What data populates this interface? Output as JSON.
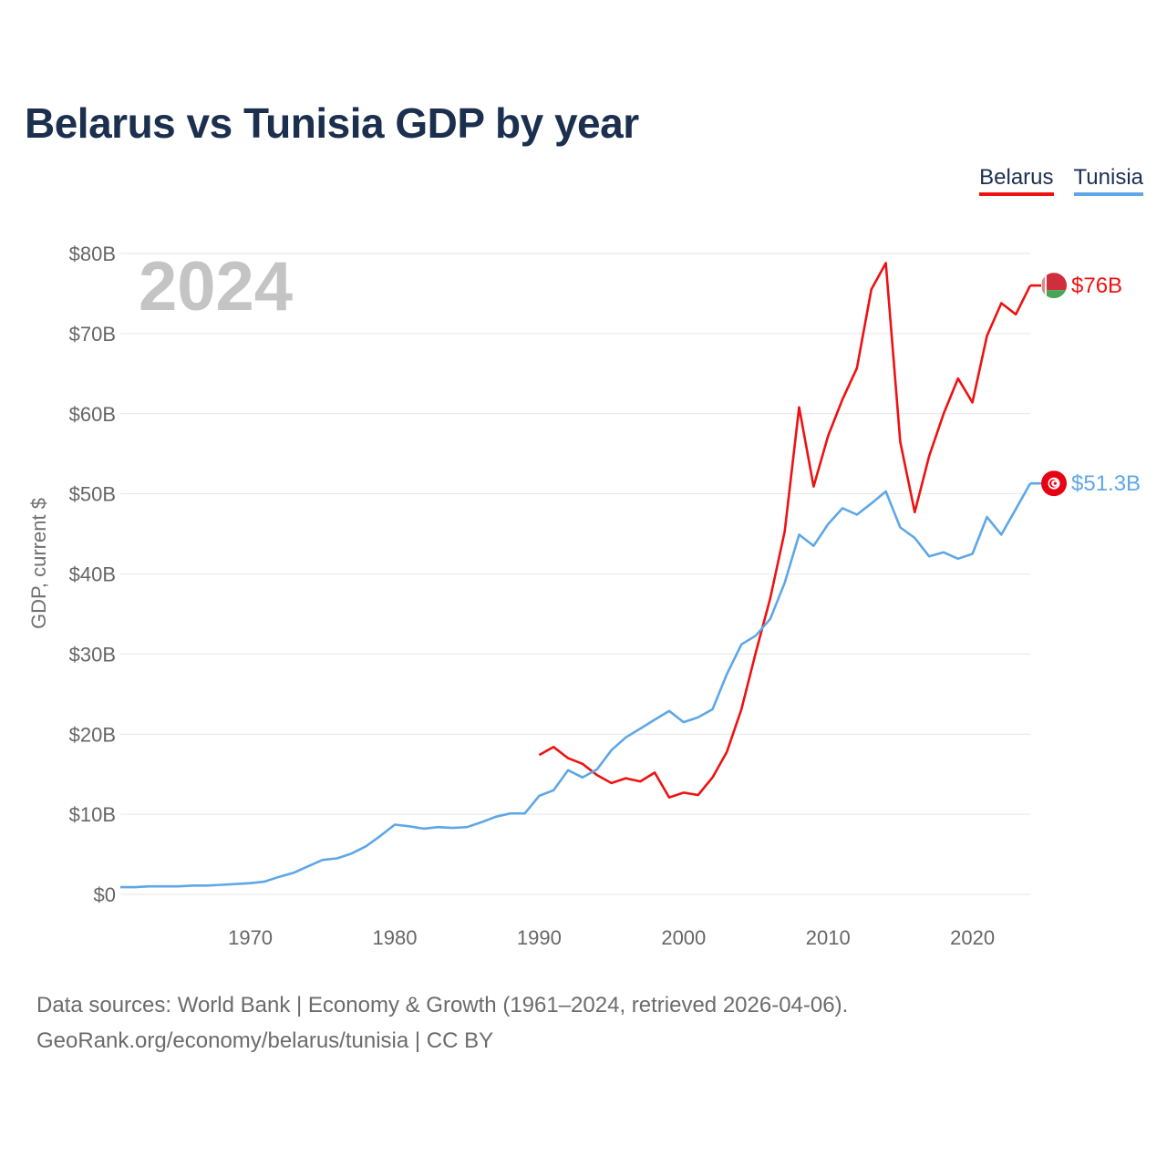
{
  "title": "Belarus vs Tunisia GDP by year",
  "legend": {
    "belarus": "Belarus",
    "tunisia": "Tunisia"
  },
  "year_watermark": "2024",
  "footer": {
    "line1": "Data sources: World Bank | Economy & Growth (1961–2024, retrieved 2026-04-06).",
    "line2": "GeoRank.org/economy/belarus/tunisia | CC BY"
  },
  "chart_data": {
    "type": "line",
    "title": "Belarus vs Tunisia GDP by year",
    "xlabel": "",
    "ylabel": "GDP, current $",
    "xlim": [
      1961,
      2024
    ],
    "ylim": [
      0,
      80
    ],
    "y_ticks": [
      0,
      10,
      20,
      30,
      40,
      50,
      60,
      70,
      80
    ],
    "y_tick_labels": [
      "$0",
      "$10B",
      "$20B",
      "$30B",
      "$40B",
      "$50B",
      "$60B",
      "$70B",
      "$80B"
    ],
    "x_ticks": [
      1970,
      1980,
      1990,
      2000,
      2010,
      2020
    ],
    "x_tick_labels": [
      "1970",
      "1980",
      "1990",
      "2000",
      "2010",
      "2020"
    ],
    "grid": true,
    "legend_position": "top-right",
    "series": [
      {
        "name": "Belarus",
        "color": "#ee1111",
        "end_label": "$76B",
        "flag": "belarus-flag-icon",
        "x": [
          1990,
          1991,
          1992,
          1993,
          1994,
          1995,
          1996,
          1997,
          1998,
          1999,
          2000,
          2001,
          2002,
          2003,
          2004,
          2005,
          2006,
          2007,
          2008,
          2009,
          2010,
          2011,
          2012,
          2013,
          2014,
          2015,
          2016,
          2017,
          2018,
          2019,
          2020,
          2021,
          2022,
          2023,
          2024
        ],
        "values": [
          17.4,
          18.4,
          17.0,
          16.3,
          14.9,
          13.9,
          14.5,
          14.1,
          15.2,
          12.1,
          12.7,
          12.4,
          14.6,
          17.8,
          23.1,
          30.2,
          37.0,
          45.3,
          60.8,
          50.9,
          57.2,
          61.8,
          65.7,
          75.5,
          78.8,
          56.5,
          47.7,
          54.7,
          60.0,
          64.4,
          61.4,
          69.7,
          73.8,
          72.4,
          76.0
        ]
      },
      {
        "name": "Tunisia",
        "color": "#5ea7e6",
        "end_label": "$51.3B",
        "flag": "tunisia-flag-icon",
        "x": [
          1961,
          1962,
          1963,
          1964,
          1965,
          1966,
          1967,
          1968,
          1969,
          1970,
          1971,
          1972,
          1973,
          1974,
          1975,
          1976,
          1977,
          1978,
          1979,
          1980,
          1981,
          1982,
          1983,
          1984,
          1985,
          1986,
          1987,
          1988,
          1989,
          1990,
          1991,
          1992,
          1993,
          1994,
          1995,
          1996,
          1997,
          1998,
          1999,
          2000,
          2001,
          2002,
          2003,
          2004,
          2005,
          2006,
          2007,
          2008,
          2009,
          2010,
          2011,
          2012,
          2013,
          2014,
          2015,
          2016,
          2017,
          2018,
          2019,
          2020,
          2021,
          2022,
          2023,
          2024
        ],
        "values": [
          0.9,
          0.9,
          1.0,
          1.0,
          1.0,
          1.1,
          1.1,
          1.2,
          1.3,
          1.4,
          1.6,
          2.2,
          2.7,
          3.5,
          4.3,
          4.5,
          5.1,
          6.0,
          7.3,
          8.7,
          8.5,
          8.2,
          8.4,
          8.3,
          8.4,
          9.0,
          9.7,
          10.1,
          10.1,
          12.3,
          13.0,
          15.5,
          14.6,
          15.6,
          18.0,
          19.6,
          20.7,
          21.8,
          22.9,
          21.5,
          22.1,
          23.1,
          27.5,
          31.2,
          32.3,
          34.4,
          38.9,
          44.9,
          43.5,
          46.2,
          48.2,
          47.4,
          48.8,
          50.3,
          45.8,
          44.5,
          42.2,
          42.7,
          41.9,
          42.5,
          47.1,
          44.9,
          48.1,
          51.3
        ]
      }
    ]
  }
}
